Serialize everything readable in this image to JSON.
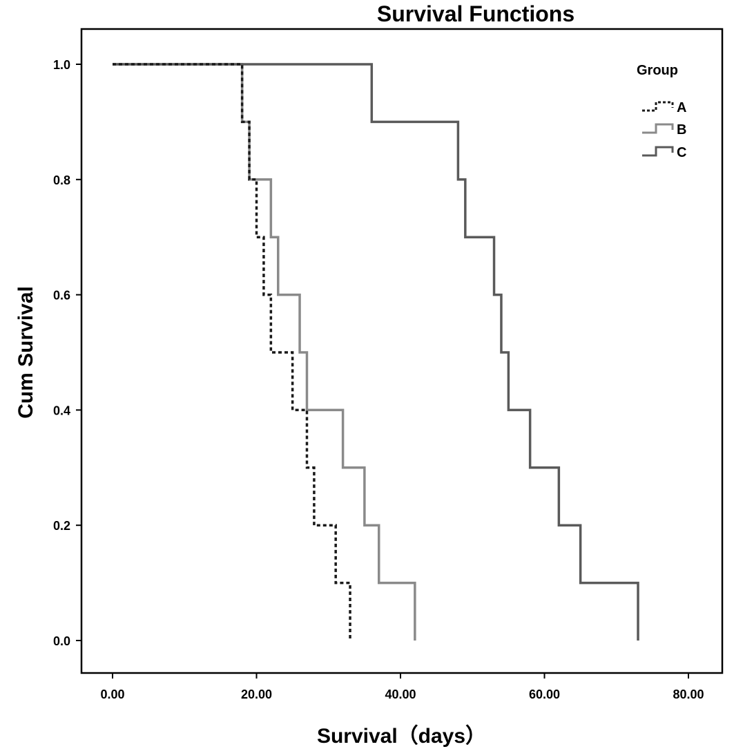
{
  "chart_data": {
    "type": "line",
    "subtype": "step",
    "title": "Survival Functions",
    "xlabel": "Survival（days）",
    "ylabel": "Cum Survival",
    "xlim": [
      0,
      80
    ],
    "ylim": [
      0,
      1
    ],
    "x_ticks": [
      "0.00",
      "20.00",
      "40.00",
      "60.00",
      "80.00"
    ],
    "y_ticks": [
      "0.0",
      "0.2",
      "0.4",
      "0.6",
      "0.8",
      "1.0"
    ],
    "grid": false,
    "legend": {
      "title": "Group",
      "placement": "top-right"
    },
    "series": [
      {
        "name": "A",
        "color": "#1a1a1a",
        "style": "dotted",
        "times": [
          0,
          18,
          19,
          20,
          21,
          22,
          25,
          27,
          28,
          31,
          33
        ],
        "survival": [
          1.0,
          0.9,
          0.8,
          0.7,
          0.6,
          0.5,
          0.4,
          0.3,
          0.2,
          0.1,
          0.0
        ]
      },
      {
        "name": "B",
        "color": "#8a8a8a",
        "style": "solid",
        "times": [
          0,
          18,
          19,
          22,
          23,
          26,
          27,
          32,
          35,
          37,
          42
        ],
        "survival": [
          1.0,
          0.9,
          0.8,
          0.7,
          0.6,
          0.5,
          0.4,
          0.3,
          0.2,
          0.1,
          0.0
        ]
      },
      {
        "name": "C",
        "color": "#5a5a5a",
        "style": "solid",
        "times": [
          0,
          36,
          48,
          49,
          53,
          54,
          55,
          58,
          62,
          65,
          73
        ],
        "survival": [
          1.0,
          0.9,
          0.8,
          0.7,
          0.6,
          0.5,
          0.4,
          0.3,
          0.2,
          0.1,
          0.0
        ]
      }
    ]
  }
}
